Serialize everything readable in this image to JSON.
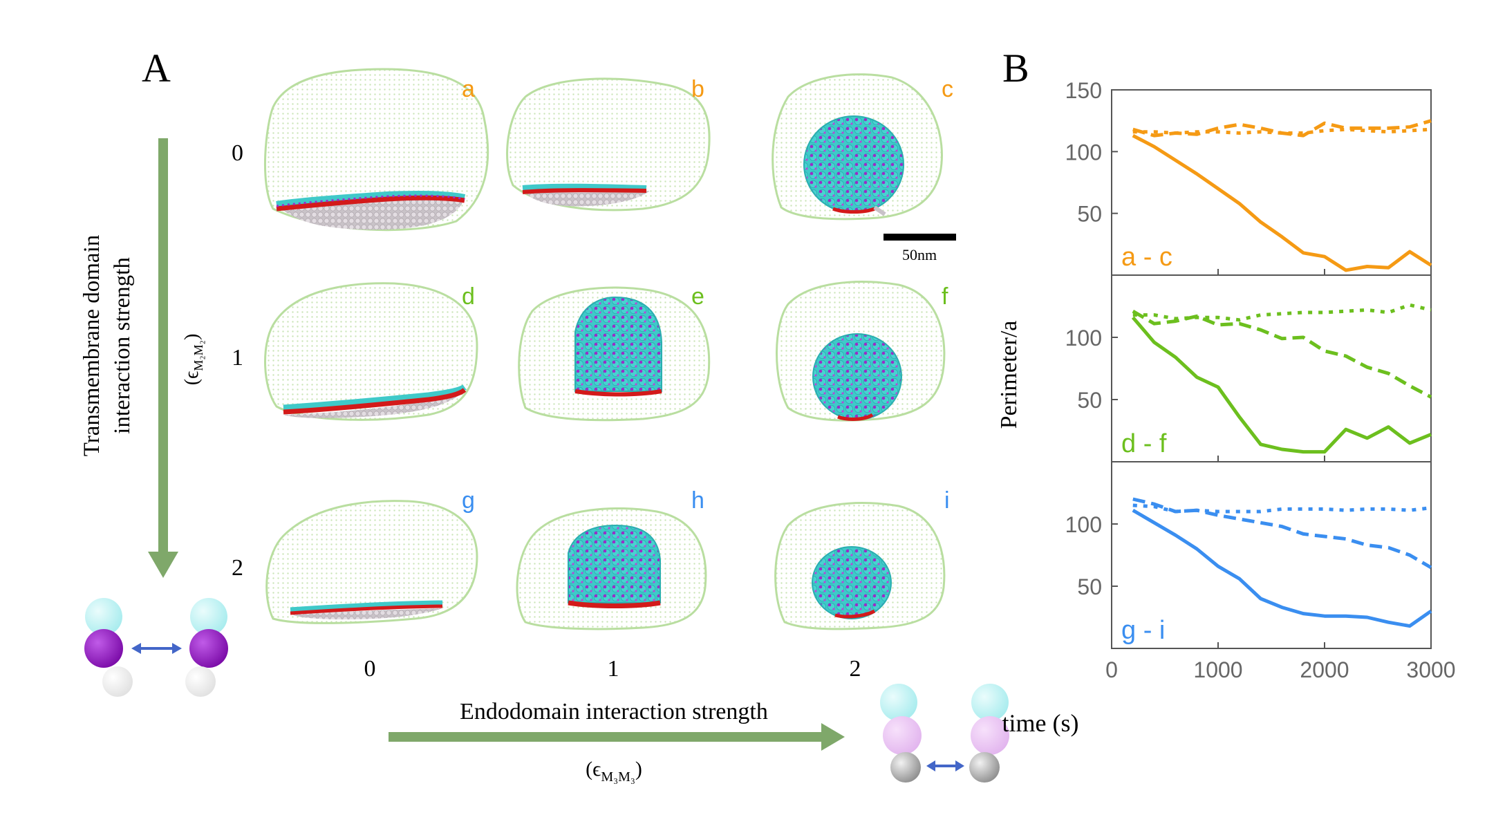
{
  "panel_a": {
    "label": "A",
    "column_values": [
      "0",
      "1",
      "2"
    ],
    "row_values": [
      "0",
      "1",
      "2"
    ],
    "snapshots": [
      {
        "letter": "a",
        "state": "flat"
      },
      {
        "letter": "b",
        "state": "flat"
      },
      {
        "letter": "c",
        "state": "budded"
      },
      {
        "letter": "d",
        "state": "flat"
      },
      {
        "letter": "e",
        "state": "budded"
      },
      {
        "letter": "f",
        "state": "budded"
      },
      {
        "letter": "g",
        "state": "flat"
      },
      {
        "letter": "h",
        "state": "budded"
      },
      {
        "letter": "i",
        "state": "budded"
      }
    ],
    "vertical_axis_label_line1": "Transmembrane domain",
    "vertical_axis_label_line2": "interaction strength",
    "vertical_axis_symbol": "(ϵ",
    "vertical_axis_symbol_sub": "M₂M₂",
    "vertical_axis_symbol_close": ")",
    "horizontal_axis_label": "Endodomain interaction strength",
    "horizontal_axis_symbol": "(ϵ",
    "horizontal_axis_symbol_sub": "M₃M₃",
    "horizontal_axis_symbol_close": ")",
    "scale_bar_label": "50nm"
  },
  "panel_b": {
    "label": "B"
  },
  "colors": {
    "orange": "#f59a14",
    "green": "#6cbf1e",
    "blue": "#3a8ef0",
    "arrow_green": "#7fa86a",
    "axis_gray": "#555555",
    "tick_gray": "#666666",
    "membrane_green": "#a9d38a",
    "teal": "#3fc9c9",
    "purple": "#9a2dc8",
    "red": "#d31a1a"
  },
  "chart_data": {
    "type": "line",
    "ylabel": "Perimeter/a",
    "xlabel": "time (s)",
    "xlim": [
      0,
      3000
    ],
    "xticks": [
      "0",
      "1000",
      "2000",
      "3000"
    ],
    "panels": [
      {
        "label": "a - c",
        "ylim": [
          0,
          150
        ],
        "yticks": [
          "150",
          "100",
          "50"
        ],
        "yticks_values": [
          150,
          100,
          50
        ],
        "color": "orange",
        "series": [
          {
            "name": "a",
            "style": "dotted",
            "x": [
              200,
              400,
              600,
              800,
              1000,
              1200,
              1400,
              1600,
              1800,
              2000,
              2200,
              2400,
              2600,
              2800,
              3000
            ],
            "y": [
              116,
              116,
              115,
              116,
              116,
              115,
              116,
              115,
              115,
              117,
              118,
              117,
              116,
              117,
              118
            ]
          },
          {
            "name": "b",
            "style": "dashed",
            "x": [
              200,
              400,
              600,
              800,
              1000,
              1200,
              1400,
              1600,
              1800,
              2000,
              2200,
              2400,
              2600,
              2800,
              3000
            ],
            "y": [
              118,
              113,
              115,
              114,
              119,
              122,
              119,
              115,
              113,
              123,
              119,
              119,
              119,
              120,
              125
            ]
          },
          {
            "name": "c",
            "style": "solid",
            "x": [
              200,
              400,
              600,
              800,
              1000,
              1200,
              1400,
              1600,
              1800,
              2000,
              2200,
              2400,
              2600,
              2800,
              3000
            ],
            "y": [
              113,
              104,
              93,
              82,
              70,
              58,
              43,
              31,
              18,
              15,
              4,
              7,
              6,
              19,
              8
            ]
          }
        ]
      },
      {
        "label": "d - f",
        "ylim": [
          0,
          150
        ],
        "yticks": [
          "100",
          "50"
        ],
        "yticks_values": [
          100,
          50
        ],
        "color": "green",
        "series": [
          {
            "name": "d",
            "style": "dotted",
            "x": [
              200,
              400,
              600,
              800,
              1000,
              1200,
              1400,
              1600,
              1800,
              2000,
              2200,
              2400,
              2600,
              2800,
              3000
            ],
            "y": [
              118,
              118,
              115,
              116,
              116,
              114,
              118,
              119,
              120,
              120,
              121,
              122,
              120,
              126,
              122
            ]
          },
          {
            "name": "e",
            "style": "dashed",
            "x": [
              200,
              400,
              600,
              800,
              1000,
              1200,
              1400,
              1600,
              1800,
              2000,
              2200,
              2400,
              2600,
              2800,
              3000
            ],
            "y": [
              121,
              111,
              113,
              117,
              110,
              111,
              106,
              99,
              100,
              89,
              85,
              76,
              71,
              61,
              52
            ]
          },
          {
            "name": "f",
            "style": "solid",
            "x": [
              200,
              400,
              600,
              800,
              1000,
              1200,
              1400,
              1600,
              1800,
              2000,
              2200,
              2400,
              2600,
              2800,
              3000
            ],
            "y": [
              116,
              96,
              84,
              68,
              60,
              36,
              14,
              10,
              8,
              8,
              26,
              19,
              28,
              15,
              22
            ]
          }
        ]
      },
      {
        "label": "g - i",
        "ylim": [
          0,
          150
        ],
        "yticks": [
          "100",
          "50"
        ],
        "yticks_values": [
          100,
          50
        ],
        "color": "blue",
        "series": [
          {
            "name": "g",
            "style": "dotted",
            "x": [
              200,
              400,
              600,
              800,
              1000,
              1200,
              1400,
              1600,
              1800,
              2000,
              2200,
              2400,
              2600,
              2800,
              3000
            ],
            "y": [
              115,
              114,
              110,
              111,
              110,
              110,
              110,
              112,
              112,
              112,
              111,
              112,
              112,
              111,
              113
            ]
          },
          {
            "name": "h",
            "style": "dashed",
            "x": [
              200,
              400,
              600,
              800,
              1000,
              1200,
              1400,
              1600,
              1800,
              2000,
              2200,
              2400,
              2600,
              2800,
              3000
            ],
            "y": [
              120,
              116,
              110,
              111,
              107,
              104,
              101,
              98,
              92,
              90,
              88,
              83,
              81,
              75,
              65
            ]
          },
          {
            "name": "i",
            "style": "solid",
            "x": [
              200,
              400,
              600,
              800,
              1000,
              1200,
              1400,
              1600,
              1800,
              2000,
              2200,
              2400,
              2600,
              2800,
              3000
            ],
            "y": [
              111,
              101,
              91,
              80,
              66,
              56,
              40,
              33,
              28,
              26,
              26,
              25,
              21,
              18,
              30
            ]
          }
        ]
      }
    ]
  }
}
